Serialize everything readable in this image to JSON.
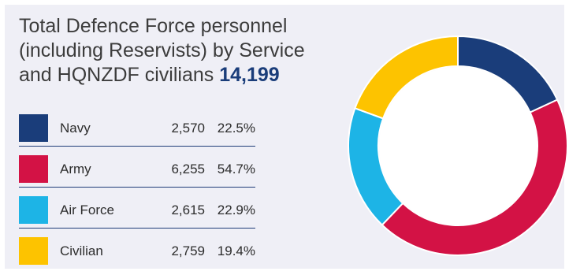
{
  "title": {
    "line1": "Total Defence Force personnel",
    "line2": "(including Reservists) by Service",
    "line3": "and HQNZDF civilians",
    "total": "14,199"
  },
  "legend": [
    {
      "label": "Navy",
      "value": "2,570",
      "pct": "22.5%",
      "color": "#1a3d7a"
    },
    {
      "label": "Army",
      "value": "6,255",
      "pct": "54.7%",
      "color": "#d31245"
    },
    {
      "label": "Air Force",
      "value": "2,615",
      "pct": "22.9%",
      "color": "#1db4e6"
    },
    {
      "label": "Civilian",
      "value": "2,759",
      "pct": "19.4%",
      "color": "#fdc300"
    }
  ],
  "chart_data": {
    "type": "pie",
    "style": "donut",
    "title": "Total Defence Force personnel (including Reservists) by Service and HQNZDF civilians 14,199",
    "categories": [
      "Navy",
      "Army",
      "Air Force",
      "Civilian"
    ],
    "values": [
      2570,
      6255,
      2615,
      2759
    ],
    "percentages": [
      22.5,
      54.7,
      22.9,
      19.4
    ],
    "colors": [
      "#1a3d7a",
      "#d31245",
      "#1db4e6",
      "#fdc300"
    ],
    "legend_position": "left"
  }
}
